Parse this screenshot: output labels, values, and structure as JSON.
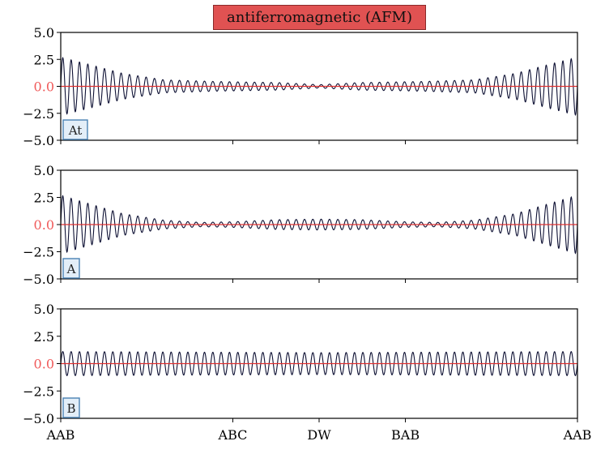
{
  "title": "antiferromagnetic (AFM)",
  "colors": {
    "title_bg": "#e05252",
    "trace": "#0d1033",
    "zero_line": "#e03030",
    "zero_tick": "#f05a5a",
    "panel_label_bg": "#e3eef8",
    "panel_label_border": "#4a82b4",
    "axis": "#000000"
  },
  "chart_data": [
    {
      "type": "line",
      "panel_label": "At",
      "ylim": [
        -5.0,
        5.0
      ],
      "yticks": [
        "5.0",
        "2.5",
        "0.0",
        "−2.5",
        "−5.0"
      ],
      "x_ticks": [
        {
          "label": "AAB",
          "pos": 0.0
        },
        {
          "label": "ABC",
          "pos": 0.333
        },
        {
          "label": "DW",
          "pos": 0.5
        },
        {
          "label": "BAB",
          "pos": 0.667
        },
        {
          "label": "AAB",
          "pos": 1.0
        }
      ],
      "series": [
        {
          "kind": "oscillation",
          "cycles": 62,
          "envelope": [
            [
              0.0,
              2.7
            ],
            [
              0.05,
              2.1
            ],
            [
              0.12,
              1.2
            ],
            [
              0.2,
              0.6
            ],
            [
              0.3,
              0.45
            ],
            [
              0.42,
              0.35
            ],
            [
              0.5,
              0.15
            ],
            [
              0.58,
              0.35
            ],
            [
              0.7,
              0.45
            ],
            [
              0.8,
              0.6
            ],
            [
              0.88,
              1.2
            ],
            [
              0.95,
              2.1
            ],
            [
              1.0,
              2.7
            ]
          ]
        }
      ]
    },
    {
      "type": "line",
      "panel_label": "A",
      "ylim": [
        -5.0,
        5.0
      ],
      "yticks": [
        "5.0",
        "2.5",
        "0.0",
        "−2.5",
        "−5.0"
      ],
      "x_ticks": [
        {
          "label": "AAB",
          "pos": 0.0
        },
        {
          "label": "ABC",
          "pos": 0.333
        },
        {
          "label": "DW",
          "pos": 0.5
        },
        {
          "label": "BAB",
          "pos": 0.667
        },
        {
          "label": "AAB",
          "pos": 1.0
        }
      ],
      "series": [
        {
          "kind": "oscillation",
          "cycles": 62,
          "envelope": [
            [
              0.0,
              2.7
            ],
            [
              0.05,
              2.0
            ],
            [
              0.12,
              1.0
            ],
            [
              0.2,
              0.4
            ],
            [
              0.27,
              0.2
            ],
            [
              0.33,
              0.25
            ],
            [
              0.42,
              0.45
            ],
            [
              0.5,
              0.5
            ],
            [
              0.58,
              0.45
            ],
            [
              0.67,
              0.25
            ],
            [
              0.73,
              0.2
            ],
            [
              0.8,
              0.4
            ],
            [
              0.88,
              1.0
            ],
            [
              0.95,
              2.0
            ],
            [
              1.0,
              2.7
            ]
          ]
        }
      ]
    },
    {
      "type": "line",
      "panel_label": "B",
      "ylim": [
        -5.0,
        5.0
      ],
      "yticks": [
        "5.0",
        "2.5",
        "0.0",
        "−2.5",
        "−5.0"
      ],
      "x_ticks": [
        {
          "label": "AAB",
          "pos": 0.0
        },
        {
          "label": "ABC",
          "pos": 0.333
        },
        {
          "label": "DW",
          "pos": 0.5
        },
        {
          "label": "BAB",
          "pos": 0.667
        },
        {
          "label": "AAB",
          "pos": 1.0
        }
      ],
      "series": [
        {
          "kind": "oscillation",
          "cycles": 62,
          "envelope": [
            [
              0.0,
              1.1
            ],
            [
              0.5,
              1.0
            ],
            [
              1.0,
              1.1
            ]
          ]
        }
      ]
    }
  ]
}
